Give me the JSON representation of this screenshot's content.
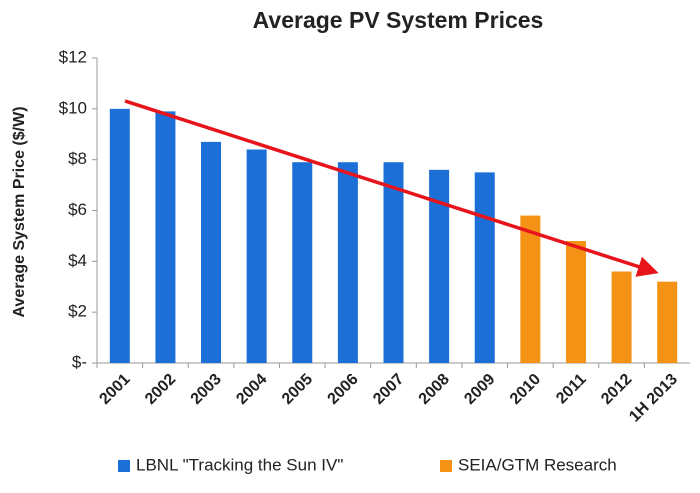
{
  "chart_data": {
    "type": "bar",
    "title": "Average PV System Prices",
    "y_label": "Average System Price ($/W)",
    "categories": [
      "2001",
      "2002",
      "2003",
      "2004",
      "2005",
      "2006",
      "2007",
      "2008",
      "2009",
      "2010",
      "2011",
      "2012",
      "1H 2013"
    ],
    "series": [
      {
        "name": "LBNL \"Tracking the Sun IV\"",
        "color": "#1b6fd6",
        "values": [
          10.0,
          9.9,
          8.7,
          8.4,
          7.9,
          7.9,
          7.9,
          7.6,
          7.5,
          null,
          null,
          null,
          null
        ]
      },
      {
        "name": "SEIA/GTM Research",
        "color": "#f39214",
        "values": [
          null,
          null,
          null,
          null,
          null,
          null,
          null,
          null,
          null,
          5.8,
          4.8,
          3.6,
          3.2
        ]
      }
    ],
    "ylim": [
      0,
      12
    ],
    "yticks": [
      {
        "value": 0,
        "label": "$-"
      },
      {
        "value": 2,
        "label": "$2"
      },
      {
        "value": 4,
        "label": "$4"
      },
      {
        "value": 6,
        "label": "$6"
      },
      {
        "value": 8,
        "label": "$8"
      },
      {
        "value": 10,
        "label": "$10"
      },
      {
        "value": 12,
        "label": "$12"
      }
    ],
    "grid": false,
    "legend": "bottom"
  }
}
